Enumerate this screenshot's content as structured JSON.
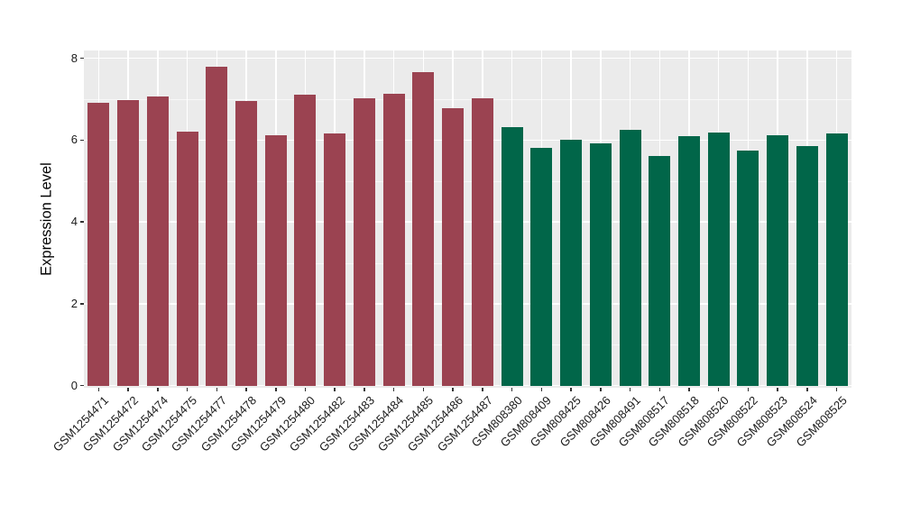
{
  "figure": {
    "background": "#FFFFFF",
    "panel_background": "#EBEBEB",
    "gridline_color": "#FFFFFF",
    "axis_text_color": "#1A1A1A",
    "tick_mark_color": "#333333"
  },
  "chart_data": {
    "type": "bar",
    "title": "",
    "xlabel": "",
    "ylabel": "Expression Level",
    "ylim": [
      0,
      8
    ],
    "yticks": [
      0,
      2,
      4,
      6,
      8
    ],
    "minor_yticks": [
      1,
      3,
      5,
      7
    ],
    "grid": "on",
    "legend": "none",
    "groups": [
      {
        "name": "maroon-bars",
        "color": "#9B4351"
      },
      {
        "name": "green-bars",
        "color": "#016649"
      }
    ],
    "bars": [
      {
        "label": "GSM1254471",
        "value": 6.9,
        "group": 0
      },
      {
        "label": "GSM1254472",
        "value": 6.97,
        "group": 0
      },
      {
        "label": "GSM1254474",
        "value": 7.07,
        "group": 0
      },
      {
        "label": "GSM1254475",
        "value": 6.2,
        "group": 0
      },
      {
        "label": "GSM1254477",
        "value": 7.8,
        "group": 0
      },
      {
        "label": "GSM1254478",
        "value": 6.96,
        "group": 0
      },
      {
        "label": "GSM1254479",
        "value": 6.12,
        "group": 0
      },
      {
        "label": "GSM1254480",
        "value": 7.1,
        "group": 0
      },
      {
        "label": "GSM1254482",
        "value": 6.16,
        "group": 0
      },
      {
        "label": "GSM1254483",
        "value": 7.03,
        "group": 0
      },
      {
        "label": "GSM1254484",
        "value": 7.13,
        "group": 0
      },
      {
        "label": "GSM1254485",
        "value": 7.67,
        "group": 0
      },
      {
        "label": "GSM1254486",
        "value": 6.77,
        "group": 0
      },
      {
        "label": "GSM1254487",
        "value": 7.01,
        "group": 0
      },
      {
        "label": "GSM808380",
        "value": 6.32,
        "group": 1
      },
      {
        "label": "GSM808409",
        "value": 5.8,
        "group": 1
      },
      {
        "label": "GSM808425",
        "value": 6.0,
        "group": 1
      },
      {
        "label": "GSM808426",
        "value": 5.91,
        "group": 1
      },
      {
        "label": "GSM808491",
        "value": 6.25,
        "group": 1
      },
      {
        "label": "GSM808517",
        "value": 5.61,
        "group": 1
      },
      {
        "label": "GSM808518",
        "value": 6.1,
        "group": 1
      },
      {
        "label": "GSM808520",
        "value": 6.18,
        "group": 1
      },
      {
        "label": "GSM808522",
        "value": 5.74,
        "group": 1
      },
      {
        "label": "GSM808523",
        "value": 6.12,
        "group": 1
      },
      {
        "label": "GSM808524",
        "value": 5.85,
        "group": 1
      },
      {
        "label": "GSM808525",
        "value": 6.16,
        "group": 1
      }
    ]
  }
}
